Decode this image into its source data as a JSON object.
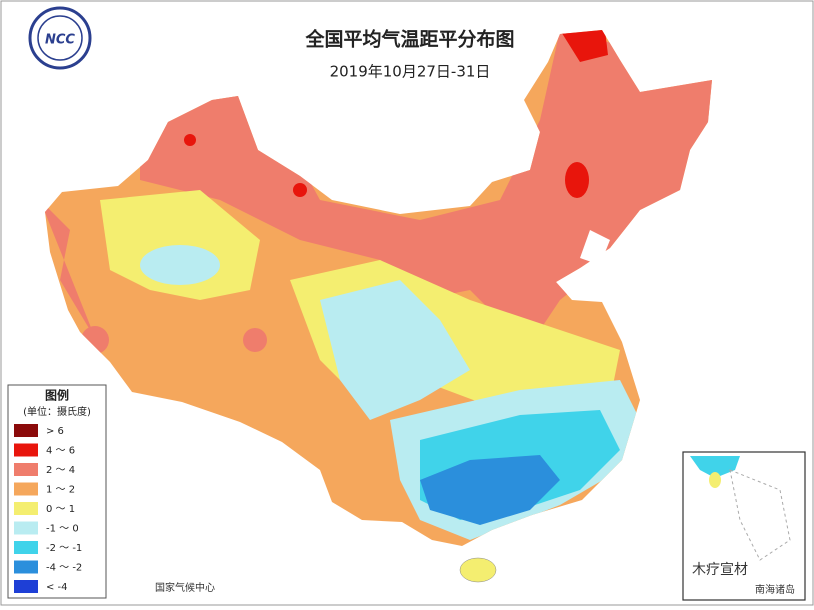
{
  "header": {
    "title": "全国平均气温距平分布图",
    "subtitle": "2019年10月27日-31日"
  },
  "logo": {
    "text": "NCC"
  },
  "legend": {
    "title": "图例",
    "unit": "(单位：摄氏度)",
    "items": [
      {
        "label": "> 6",
        "color": "#8b0a0a"
      },
      {
        "label": "4 ～ 6",
        "color": "#e8150c"
      },
      {
        "label": "2 ～ 4",
        "color": "#ef7d6c"
      },
      {
        "label": "1 ～ 2",
        "color": "#f5a75c"
      },
      {
        "label": "0 ～ 1",
        "color": "#f4ee70"
      },
      {
        "label": "-1 ～ 0",
        "color": "#b9ecf1"
      },
      {
        "label": "-2 ～ -1",
        "color": "#40d3ea"
      },
      {
        "label": "-4 ～ -2",
        "color": "#2b8fdc"
      },
      {
        "label": "< -4",
        "color": "#1e3fd6"
      }
    ]
  },
  "footer": "国家气候中心",
  "inset": {
    "label": "南海诸岛"
  },
  "watermark": "木疗宣材"
}
